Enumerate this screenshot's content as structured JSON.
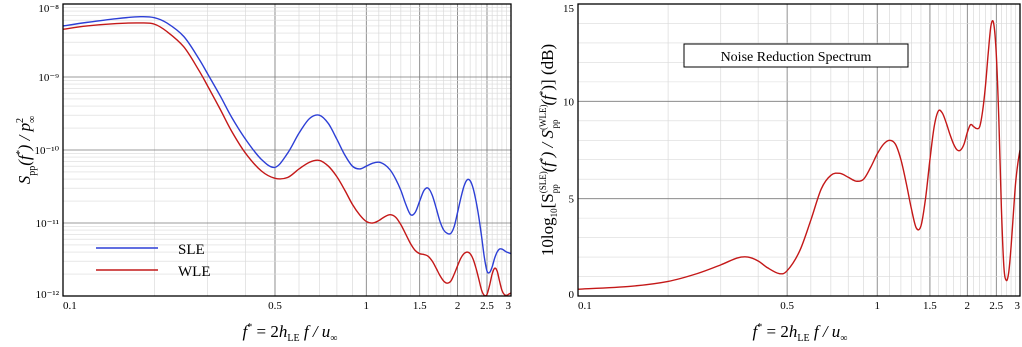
{
  "chart_data": [
    {
      "type": "line",
      "xscale": "log",
      "yscale": "log",
      "xlim": [
        0.1,
        3
      ],
      "ylim": [
        1e-12,
        1e-08
      ],
      "grid": true,
      "xlabel": "f* = 2h_LE f / u∞",
      "ylabel": "S_pp(f*) / p∞²",
      "x_tick_labels": [
        "0.1",
        "0.5",
        "1",
        "1.5",
        "2",
        "2.5",
        "3"
      ],
      "x_tick_values": [
        0.1,
        0.5,
        1,
        1.5,
        2,
        2.5,
        3
      ],
      "y_tick_labels": [
        "10⁻¹²",
        "10⁻¹¹",
        "10⁻¹⁰",
        "10⁻⁹",
        "10⁻⁸"
      ],
      "y_tick_values": [
        1e-12,
        1e-11,
        1e-10,
        1e-09,
        1e-08
      ],
      "legend_placement": "bottom-left",
      "series": [
        {
          "name": "SLE",
          "color": "#2d3fd6",
          "x": [
            0.1,
            0.12,
            0.15,
            0.18,
            0.2,
            0.22,
            0.25,
            0.28,
            0.3,
            0.33,
            0.36,
            0.4,
            0.45,
            0.5,
            0.55,
            0.6,
            0.65,
            0.7,
            0.75,
            0.8,
            0.85,
            0.9,
            0.95,
            1.0,
            1.05,
            1.1,
            1.15,
            1.2,
            1.25,
            1.3,
            1.35,
            1.4,
            1.45,
            1.5,
            1.55,
            1.6,
            1.65,
            1.7,
            1.75,
            1.8,
            1.85,
            1.9,
            1.95,
            2.0,
            2.05,
            2.1,
            2.15,
            2.2,
            2.25,
            2.3,
            2.35,
            2.4,
            2.45,
            2.5,
            2.55,
            2.6,
            2.65,
            2.7,
            2.75,
            2.8,
            2.85,
            2.9,
            2.95,
            3.0
          ],
          "y": [
            5e-09,
            5.6e-09,
            6.3e-09,
            6.7e-09,
            6.5e-09,
            5.5e-09,
            3.6e-09,
            1.8e-09,
            1.1e-09,
            5.5e-10,
            2.8e-10,
            1.4e-10,
            7.5e-11,
            5.8e-11,
            9e-11,
            1.7e-10,
            2.7e-10,
            3e-10,
            2.3e-10,
            1.4e-10,
            8.5e-11,
            6e-11,
            5.5e-11,
            6e-11,
            6.6e-11,
            6.8e-11,
            6.3e-11,
            5.3e-11,
            4e-11,
            2.8e-11,
            1.8e-11,
            1.3e-11,
            1.4e-11,
            2e-11,
            2.8e-11,
            3e-11,
            2.4e-11,
            1.6e-11,
            1.05e-11,
            8e-12,
            7.2e-12,
            7.2e-12,
            9e-12,
            1.4e-11,
            2.2e-11,
            3.2e-11,
            3.9e-11,
            3.8e-11,
            3e-11,
            2e-11,
            1.2e-11,
            6.5e-12,
            3.4e-12,
            2.2e-12,
            2.1e-12,
            2.5e-12,
            3.3e-12,
            4e-12,
            4.4e-12,
            4.4e-12,
            4.2e-12,
            4e-12,
            3.9e-12,
            3.8e-12
          ]
        },
        {
          "name": "WLE",
          "color": "#c41818",
          "x": [
            0.1,
            0.12,
            0.15,
            0.18,
            0.2,
            0.22,
            0.25,
            0.28,
            0.3,
            0.33,
            0.36,
            0.4,
            0.45,
            0.5,
            0.55,
            0.6,
            0.65,
            0.7,
            0.75,
            0.8,
            0.85,
            0.9,
            0.95,
            1.0,
            1.05,
            1.1,
            1.15,
            1.2,
            1.25,
            1.3,
            1.35,
            1.4,
            1.45,
            1.5,
            1.55,
            1.6,
            1.65,
            1.7,
            1.75,
            1.8,
            1.85,
            1.9,
            1.95,
            2.0,
            2.05,
            2.1,
            2.15,
            2.2,
            2.25,
            2.3,
            2.35,
            2.4,
            2.45,
            2.5,
            2.55,
            2.6,
            2.65,
            2.7,
            2.75,
            2.8,
            2.85,
            2.9,
            2.95,
            3.0
          ],
          "y": [
            4.5e-09,
            5e-09,
            5.4e-09,
            5.5e-09,
            5.3e-09,
            4.2e-09,
            2.6e-09,
            1.25e-09,
            7.5e-10,
            3.6e-10,
            1.8e-10,
            9e-11,
            5.2e-11,
            4.1e-11,
            4.2e-11,
            5.5e-11,
            6.8e-11,
            7.2e-11,
            6e-11,
            4.3e-11,
            2.8e-11,
            1.8e-11,
            1.3e-11,
            1.05e-11,
            1e-11,
            1.08e-11,
            1.22e-11,
            1.3e-11,
            1.2e-11,
            9.5e-12,
            7e-12,
            5.2e-12,
            4.2e-12,
            3.8e-12,
            3.7e-12,
            3.5e-12,
            3e-12,
            2.4e-12,
            1.9e-12,
            1.6e-12,
            1.5e-12,
            1.6e-12,
            2e-12,
            2.6e-12,
            3.3e-12,
            3.8e-12,
            4e-12,
            3.8e-12,
            3.2e-12,
            2.4e-12,
            1.7e-12,
            1.2e-12,
            1.02e-12,
            1.05e-12,
            1.4e-12,
            2e-12,
            2.4e-12,
            2.2e-12,
            1.6e-12,
            1.2e-12,
            1.05e-12,
            1.02e-12,
            1.06e-12,
            1.1e-12
          ]
        }
      ]
    },
    {
      "type": "line",
      "xscale": "log",
      "yscale": "linear",
      "xlim": [
        0.1,
        3
      ],
      "ylim": [
        0,
        15
      ],
      "grid": true,
      "title": "Noise Reduction Spectrum",
      "xlabel": "f* = 2h_LE f / u∞",
      "ylabel": "10log₁₀[S_pp^(SLE)(f*) / S_pp^(WLE)(f*)] (dB)",
      "x_tick_labels": [
        "0.1",
        "0.5",
        "1",
        "1.5",
        "2",
        "2.5",
        "3"
      ],
      "x_tick_values": [
        0.1,
        0.5,
        1,
        1.5,
        2,
        2.5,
        3
      ],
      "y_tick_labels": [
        "0",
        "5",
        "10",
        "15"
      ],
      "y_tick_values": [
        0,
        5,
        10,
        15
      ],
      "series": [
        {
          "color": "#c41818",
          "x": [
            0.1,
            0.15,
            0.2,
            0.25,
            0.3,
            0.34,
            0.37,
            0.4,
            0.43,
            0.47,
            0.5,
            0.55,
            0.6,
            0.65,
            0.7,
            0.75,
            0.8,
            0.85,
            0.9,
            0.95,
            1.0,
            1.05,
            1.1,
            1.15,
            1.2,
            1.25,
            1.3,
            1.35,
            1.4,
            1.45,
            1.5,
            1.55,
            1.6,
            1.65,
            1.7,
            1.75,
            1.8,
            1.85,
            1.9,
            1.95,
            2.0,
            2.05,
            2.1,
            2.15,
            2.2,
            2.25,
            2.3,
            2.35,
            2.4,
            2.45,
            2.5,
            2.55,
            2.6,
            2.65,
            2.7,
            2.75,
            2.8,
            2.85,
            2.9,
            2.95,
            3.0
          ],
          "y": [
            0.35,
            0.5,
            0.75,
            1.15,
            1.6,
            1.95,
            2.0,
            1.8,
            1.45,
            1.15,
            1.3,
            2.3,
            3.9,
            5.5,
            6.2,
            6.3,
            6.1,
            5.9,
            6.0,
            6.6,
            7.3,
            7.8,
            8.0,
            7.8,
            7.0,
            5.8,
            4.5,
            3.5,
            3.6,
            5.0,
            7.0,
            8.7,
            9.5,
            9.4,
            8.9,
            8.3,
            7.8,
            7.5,
            7.5,
            7.8,
            8.4,
            8.8,
            8.7,
            8.6,
            8.7,
            9.5,
            10.8,
            12.5,
            13.9,
            14.0,
            12.4,
            9.0,
            4.5,
            1.5,
            0.8,
            1.2,
            2.5,
            4.2,
            5.8,
            6.8,
            7.5
          ]
        }
      ]
    }
  ],
  "left_panel": {
    "y_axis_label": "S_pp(f*) / p∞²",
    "x_axis_label": "f* = 2h_LE f / u∞",
    "legend": {
      "sle": "SLE",
      "wle": "WLE"
    }
  },
  "right_panel": {
    "title_box": "Noise Reduction Spectrum",
    "y_axis_label": "10log₁₀[S_pp^(SLE)(f*) / S_pp^(WLE)(f*)] (dB)",
    "x_axis_label": "f* = 2h_LE f / u∞"
  }
}
